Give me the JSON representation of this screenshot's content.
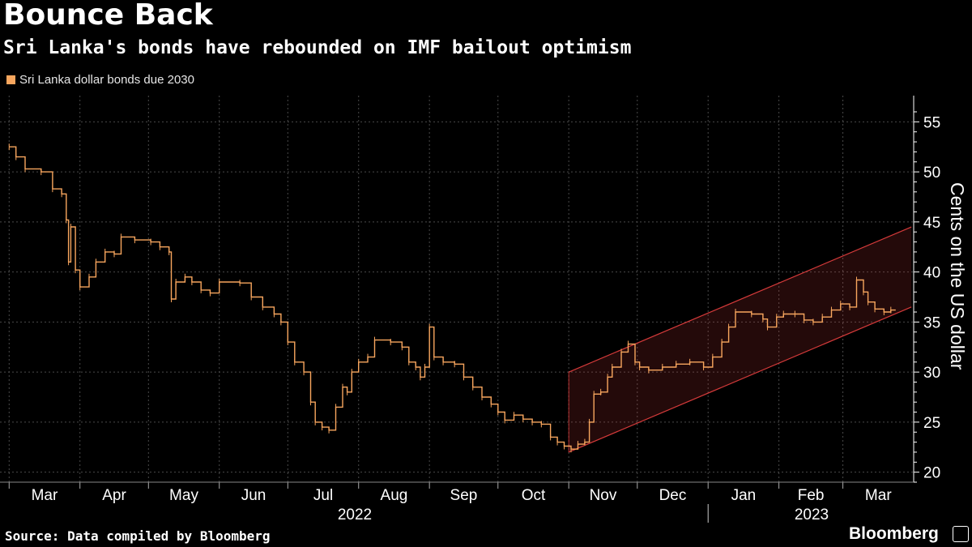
{
  "chart_data": {
    "type": "step-line",
    "title": "Bounce Back",
    "subtitle": "Sri Lanka's bonds have rebounded on IMF bailout optimism",
    "legend": [
      "Sri Lanka dollar bonds due 2030"
    ],
    "ylabel": "Cents on the US dollar",
    "ylim": [
      19,
      56
    ],
    "yticks": [
      20,
      25,
      30,
      35,
      40,
      45,
      50,
      55
    ],
    "x_months": [
      "Mar",
      "Apr",
      "May",
      "Jun",
      "Jul",
      "Aug",
      "Sep",
      "Oct",
      "Nov",
      "Dec",
      "Jan",
      "Feb",
      "Mar"
    ],
    "year_labels": [
      "2022",
      "2023"
    ],
    "series": [
      {
        "name": "Sri Lanka dollar bonds due 2030",
        "color": "#f8a65e",
        "points": [
          [
            "2022-03-01",
            52.5
          ],
          [
            "2022-03-04",
            51.5
          ],
          [
            "2022-03-08",
            50.3
          ],
          [
            "2022-03-15",
            50.0
          ],
          [
            "2022-03-20",
            48.3
          ],
          [
            "2022-03-24",
            47.8
          ],
          [
            "2022-03-26",
            45.2
          ],
          [
            "2022-03-27",
            41.0
          ],
          [
            "2022-03-28",
            44.5
          ],
          [
            "2022-03-30",
            40.2
          ],
          [
            "2022-04-01",
            38.5
          ],
          [
            "2022-04-05",
            39.5
          ],
          [
            "2022-04-08",
            41.0
          ],
          [
            "2022-04-12",
            42.0
          ],
          [
            "2022-04-16",
            41.8
          ],
          [
            "2022-04-19",
            43.5
          ],
          [
            "2022-04-25",
            43.2
          ],
          [
            "2022-05-02",
            43.0
          ],
          [
            "2022-05-06",
            42.5
          ],
          [
            "2022-05-10",
            42.0
          ],
          [
            "2022-05-11",
            37.3
          ],
          [
            "2022-05-13",
            39.0
          ],
          [
            "2022-05-17",
            39.5
          ],
          [
            "2022-05-20",
            39.0
          ],
          [
            "2022-05-24",
            38.2
          ],
          [
            "2022-05-28",
            37.9
          ],
          [
            "2022-06-01",
            39.0
          ],
          [
            "2022-06-10",
            38.9
          ],
          [
            "2022-06-15",
            37.5
          ],
          [
            "2022-06-20",
            36.5
          ],
          [
            "2022-06-25",
            35.8
          ],
          [
            "2022-06-28",
            35.0
          ],
          [
            "2022-07-01",
            33.0
          ],
          [
            "2022-07-04",
            31.0
          ],
          [
            "2022-07-08",
            30.0
          ],
          [
            "2022-07-11",
            27.0
          ],
          [
            "2022-07-13",
            25.0
          ],
          [
            "2022-07-16",
            24.5
          ],
          [
            "2022-07-19",
            24.2
          ],
          [
            "2022-07-22",
            26.5
          ],
          [
            "2022-07-25",
            28.5
          ],
          [
            "2022-07-27",
            28.0
          ],
          [
            "2022-07-29",
            30.0
          ],
          [
            "2022-08-01",
            31.0
          ],
          [
            "2022-08-05",
            31.5
          ],
          [
            "2022-08-08",
            33.2
          ],
          [
            "2022-08-15",
            33.0
          ],
          [
            "2022-08-20",
            32.5
          ],
          [
            "2022-08-23",
            31.0
          ],
          [
            "2022-08-26",
            30.5
          ],
          [
            "2022-08-28",
            29.5
          ],
          [
            "2022-08-30",
            30.5
          ],
          [
            "2022-09-01",
            34.5
          ],
          [
            "2022-09-03",
            31.5
          ],
          [
            "2022-09-07",
            31.0
          ],
          [
            "2022-09-12",
            30.8
          ],
          [
            "2022-09-16",
            29.5
          ],
          [
            "2022-09-20",
            28.5
          ],
          [
            "2022-09-24",
            27.5
          ],
          [
            "2022-09-28",
            26.8
          ],
          [
            "2022-10-01",
            26.0
          ],
          [
            "2022-10-04",
            25.2
          ],
          [
            "2022-10-08",
            25.7
          ],
          [
            "2022-10-12",
            25.3
          ],
          [
            "2022-10-16",
            25.0
          ],
          [
            "2022-10-20",
            24.8
          ],
          [
            "2022-10-24",
            23.5
          ],
          [
            "2022-10-27",
            23.0
          ],
          [
            "2022-10-30",
            22.6
          ],
          [
            "2022-11-02",
            22.3
          ],
          [
            "2022-11-05",
            22.8
          ],
          [
            "2022-11-08",
            23.0
          ],
          [
            "2022-11-10",
            25.0
          ],
          [
            "2022-11-12",
            27.8
          ],
          [
            "2022-11-15",
            28.0
          ],
          [
            "2022-11-18",
            29.5
          ],
          [
            "2022-11-20",
            30.5
          ],
          [
            "2022-11-24",
            32.0
          ],
          [
            "2022-11-27",
            32.8
          ],
          [
            "2022-11-30",
            31.0
          ],
          [
            "2022-12-02",
            30.5
          ],
          [
            "2022-12-06",
            30.2
          ],
          [
            "2022-12-12",
            30.5
          ],
          [
            "2022-12-18",
            30.8
          ],
          [
            "2022-12-24",
            31.0
          ],
          [
            "2022-12-30",
            30.5
          ],
          [
            "2023-01-03",
            31.5
          ],
          [
            "2023-01-07",
            33.0
          ],
          [
            "2023-01-10",
            34.5
          ],
          [
            "2023-01-13",
            36.0
          ],
          [
            "2023-01-20",
            35.8
          ],
          [
            "2023-01-25",
            35.3
          ],
          [
            "2023-01-27",
            34.5
          ],
          [
            "2023-01-31",
            35.5
          ],
          [
            "2023-02-03",
            35.8
          ],
          [
            "2023-02-08",
            35.8
          ],
          [
            "2023-02-12",
            35.2
          ],
          [
            "2023-02-16",
            35.0
          ],
          [
            "2023-02-20",
            35.5
          ],
          [
            "2023-02-24",
            36.2
          ],
          [
            "2023-02-28",
            36.8
          ],
          [
            "2023-03-04",
            36.5
          ],
          [
            "2023-03-07",
            39.2
          ],
          [
            "2023-03-10",
            38.0
          ],
          [
            "2023-03-12",
            37.0
          ],
          [
            "2023-03-15",
            36.3
          ],
          [
            "2023-03-19",
            36.0
          ],
          [
            "2023-03-22",
            36.2
          ]
        ]
      }
    ],
    "annotations": [
      {
        "type": "rising-channel",
        "color": "#d43a3a",
        "start": "2022-11-01",
        "end": "2023-03-31",
        "upper": [
          30.0,
          44.5
        ],
        "lower": [
          22.0,
          36.5
        ]
      }
    ]
  },
  "footer": {
    "source": "Source: Data compiled by Bloomberg",
    "brand": "Bloomberg"
  },
  "colors": {
    "background": "#000000",
    "series": "#f8a65e",
    "channel": "#d43a3a",
    "grid": "#4a4a4a",
    "text": "#ffffff"
  }
}
